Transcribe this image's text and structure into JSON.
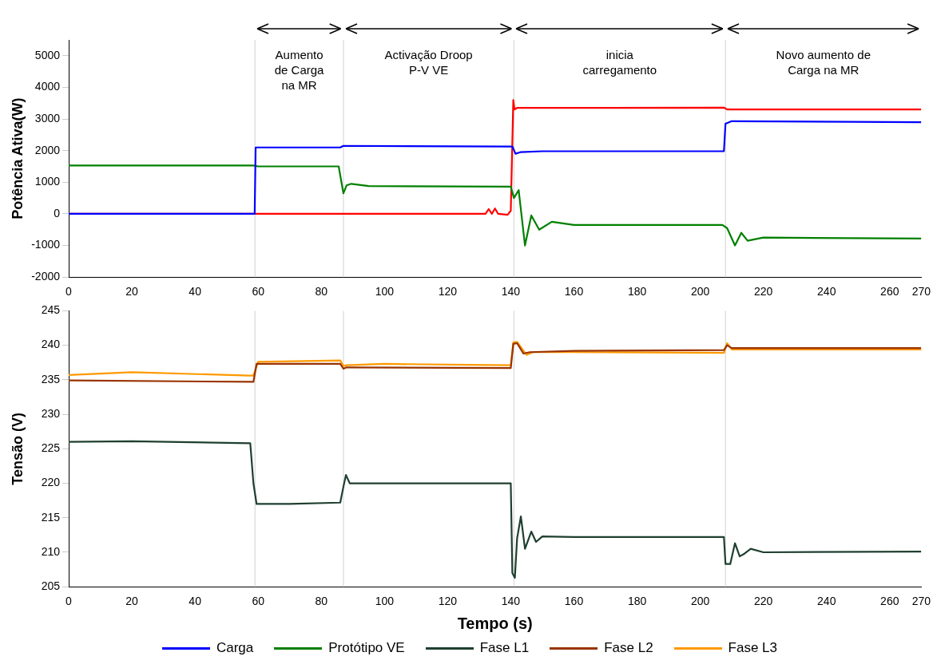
{
  "chart_data": [
    {
      "type": "line",
      "ylabel": "Potência Ativa(W)",
      "xlim": [
        0,
        270
      ],
      "xticks": [
        0,
        20,
        40,
        60,
        80,
        100,
        120,
        140,
        160,
        180,
        200,
        220,
        240,
        260,
        270
      ],
      "ylim": [
        -2000,
        5500
      ],
      "yticks": [
        -2000,
        -1000,
        0,
        1000,
        2000,
        3000,
        4000,
        5000
      ],
      "grid": false,
      "legend": "bottom",
      "line_style": "solid",
      "marker": "none",
      "ref_lines": [
        {
          "axis": "x",
          "value": 59,
          "color": "#d9d9d9"
        },
        {
          "axis": "x",
          "value": 87,
          "color": "#d9d9d9"
        },
        {
          "axis": "x",
          "value": 141,
          "color": "#d9d9d9"
        },
        {
          "axis": "x",
          "value": 208,
          "color": "#d9d9d9"
        }
      ],
      "annotations": [
        "Aumento\nde Carga\nna MR",
        "Activação Droop\nP-V VE",
        "inicia\ncarregamento",
        "Novo aumento de\nCarga na MR"
      ],
      "series": [
        {
          "name": "Carga",
          "color": "#0000ff",
          "x": [
            0,
            58.9,
            59.2,
            86,
            87,
            140.5,
            141.5,
            143,
            150,
            207.5,
            208,
            210,
            270
          ],
          "values": [
            0,
            0,
            2100,
            2100,
            2150,
            2130,
            1900,
            1950,
            1980,
            1980,
            2850,
            2930,
            2900
          ]
        },
        {
          "name": "Protótipo VE",
          "color": "#008000",
          "x": [
            0,
            58.5,
            60,
            85.5,
            87,
            88,
            89.5,
            95,
            140,
            141,
            142.5,
            144.5,
            146.5,
            149,
            153,
            160,
            207,
            208.5,
            211,
            213,
            215,
            220,
            270
          ],
          "values": [
            1530,
            1530,
            1500,
            1500,
            650,
            900,
            950,
            880,
            860,
            500,
            750,
            -1000,
            -50,
            -500,
            -250,
            -350,
            -350,
            -450,
            -1000,
            -600,
            -850,
            -750,
            -780
          ]
        },
        {
          "color": "#ff0000",
          "x": [
            0,
            132,
            133,
            134,
            135,
            136,
            139,
            140,
            140.8,
            141.2,
            142,
            150,
            207.5,
            208.5,
            270
          ],
          "values": [
            0,
            0,
            150,
            0,
            170,
            0,
            -30,
            100,
            3600,
            3300,
            3350,
            3350,
            3360,
            3300,
            3300
          ]
        }
      ]
    },
    {
      "type": "line",
      "ylabel": "Tensão (V)",
      "xlabel": "Tempo (s)",
      "xlim": [
        0,
        270
      ],
      "xticks": [
        0,
        20,
        40,
        60,
        80,
        100,
        120,
        140,
        160,
        180,
        200,
        220,
        240,
        260,
        270
      ],
      "ylim": [
        205,
        245
      ],
      "yticks": [
        205,
        210,
        215,
        220,
        225,
        230,
        235,
        240,
        245
      ],
      "grid": false,
      "legend": "bottom",
      "line_style": "solid",
      "marker": "none",
      "ref_lines": [
        {
          "axis": "x",
          "value": 59,
          "color": "#d9d9d9"
        },
        {
          "axis": "x",
          "value": 87,
          "color": "#d9d9d9"
        },
        {
          "axis": "x",
          "value": 141,
          "color": "#d9d9d9"
        },
        {
          "axis": "x",
          "value": 208,
          "color": "#d9d9d9"
        }
      ],
      "series": [
        {
          "name": "Fase L1",
          "color": "#1f3f2f",
          "x": [
            0,
            20,
            57.5,
            58.5,
            59.5,
            70,
            86,
            87,
            87.8,
            89,
            100,
            140,
            140.5,
            141.3,
            142,
            143.2,
            144.5,
            146.5,
            148,
            150,
            160,
            207.5,
            208,
            209.5,
            211,
            212.5,
            214,
            216,
            220,
            270
          ],
          "values": [
            226,
            226.1,
            225.8,
            220,
            217,
            217,
            217.2,
            219.5,
            221.2,
            220,
            220,
            220,
            207,
            206.3,
            212,
            215.2,
            210.5,
            213,
            211.5,
            212.3,
            212.2,
            212.2,
            208.3,
            208.3,
            211.3,
            209.4,
            209.8,
            210.5,
            210,
            210.1
          ]
        },
        {
          "name": "Fase L2",
          "color": "#993300",
          "x": [
            0,
            57.5,
            58.5,
            59.5,
            86,
            87,
            88,
            140,
            140.8,
            142,
            144,
            146,
            160,
            207.5,
            208.5,
            210,
            270
          ],
          "values": [
            234.9,
            234.7,
            234.7,
            237.3,
            237.3,
            236.6,
            236.8,
            236.7,
            240.2,
            240.3,
            238.8,
            239,
            239.2,
            239.3,
            240,
            239.6,
            239.6
          ]
        },
        {
          "name": "Fase L3",
          "color": "#ff9900",
          "x": [
            0,
            20,
            57.5,
            58.5,
            60,
            86,
            87,
            88,
            100,
            140,
            140.8,
            142,
            145,
            147,
            160,
            207.5,
            208.5,
            210,
            270
          ],
          "values": [
            235.7,
            236.1,
            235.6,
            235.6,
            237.6,
            237.8,
            237,
            237.1,
            237.3,
            237.1,
            240.4,
            240.5,
            238.6,
            239,
            239,
            238.9,
            240.3,
            239.4,
            239.4
          ]
        }
      ]
    }
  ]
}
